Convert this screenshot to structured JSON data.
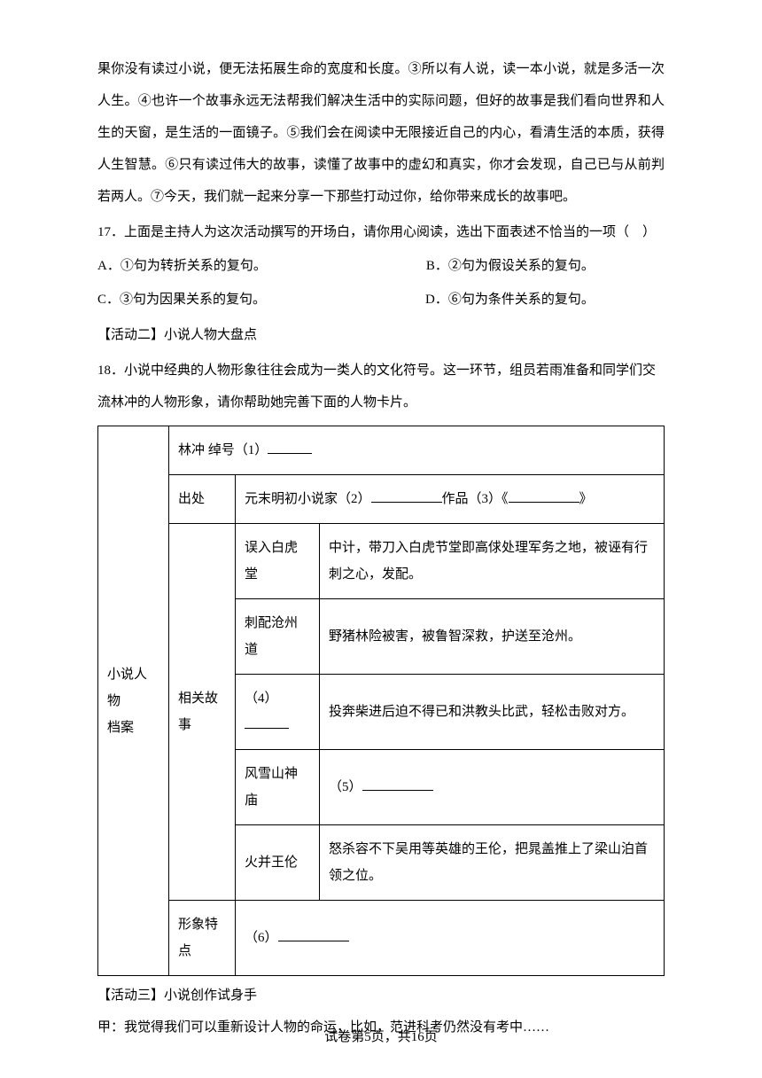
{
  "passage": "果你没有读过小说，便无法拓展生命的宽度和长度。③所以有人说，读一本小说，就是多活一次人生。④也许一个故事永远无法帮我们解决生活中的实际问题，但好的故事是我们看向世界和人生的天窗，是生活的一面镜子。⑤我们会在阅读中无限接近自己的内心，看清生活的本质，获得人生智慧。⑥只有读过伟大的故事，读懂了故事中的虚幻和真实，你才会发现，自己已与从前判若两人。⑦今天，我们就一起来分享一下那些打动过你，给你带来成长的故事吧。",
  "q17": {
    "stem": "17．上面是主持人为这次活动撰写的开场白，请你用心阅读，选出下面表述不恰当的一项（　）",
    "optA": "A．①句为转折关系的复句。",
    "optB": "B．②句为假设关系的复句。",
    "optC": "C．③句为因果关系的复句。",
    "optD": "D．⑥句为条件关系的复句。"
  },
  "activity2": "【活动二】小说人物大盘点",
  "q18": {
    "stem": "18．小说中经典的人物形象往往会成为一类人的文化符号。这一环节，组员若雨准备和同学们交流林冲的人物形象，请你帮助她完善下面的人物卡片。"
  },
  "table": {
    "sideLabel1": "小说人物",
    "sideLabel2": "档案",
    "row1_name": "林冲 绰号（1）",
    "row2_source": "出处",
    "row2_content_a": "元末明初小说家（2）",
    "row2_content_b": "作品（3）《",
    "row2_content_c": "》",
    "story_label": "相关故事",
    "story1_event": "误入白虎堂",
    "story1_desc": "中计，带刀入白虎节堂即高俅处理军务之地，被诬有行刺之心，发配。",
    "story2_event": "刺配沧州道",
    "story2_desc": "野猪林险被害，被鲁智深救，护送至沧州。",
    "story3_event": "（4）",
    "story3_desc": "投奔柴进后迫不得已和洪教头比武，轻松击败对方。",
    "story4_event": "风雪山神庙",
    "story4_desc": "（5）",
    "story5_event": "火并王伦",
    "story5_desc": "怒杀容不下吴用等英雄的王伦，把晁盖推上了梁山泊首领之位。",
    "trait_label": "形象特点",
    "trait_content": "（6）"
  },
  "activity3": "【活动三】小说创作试身手",
  "jia": "甲：我觉得我们可以重新设计人物的命运，比如，范进科考仍然没有考中……",
  "footer": "试卷第5页，共16页"
}
